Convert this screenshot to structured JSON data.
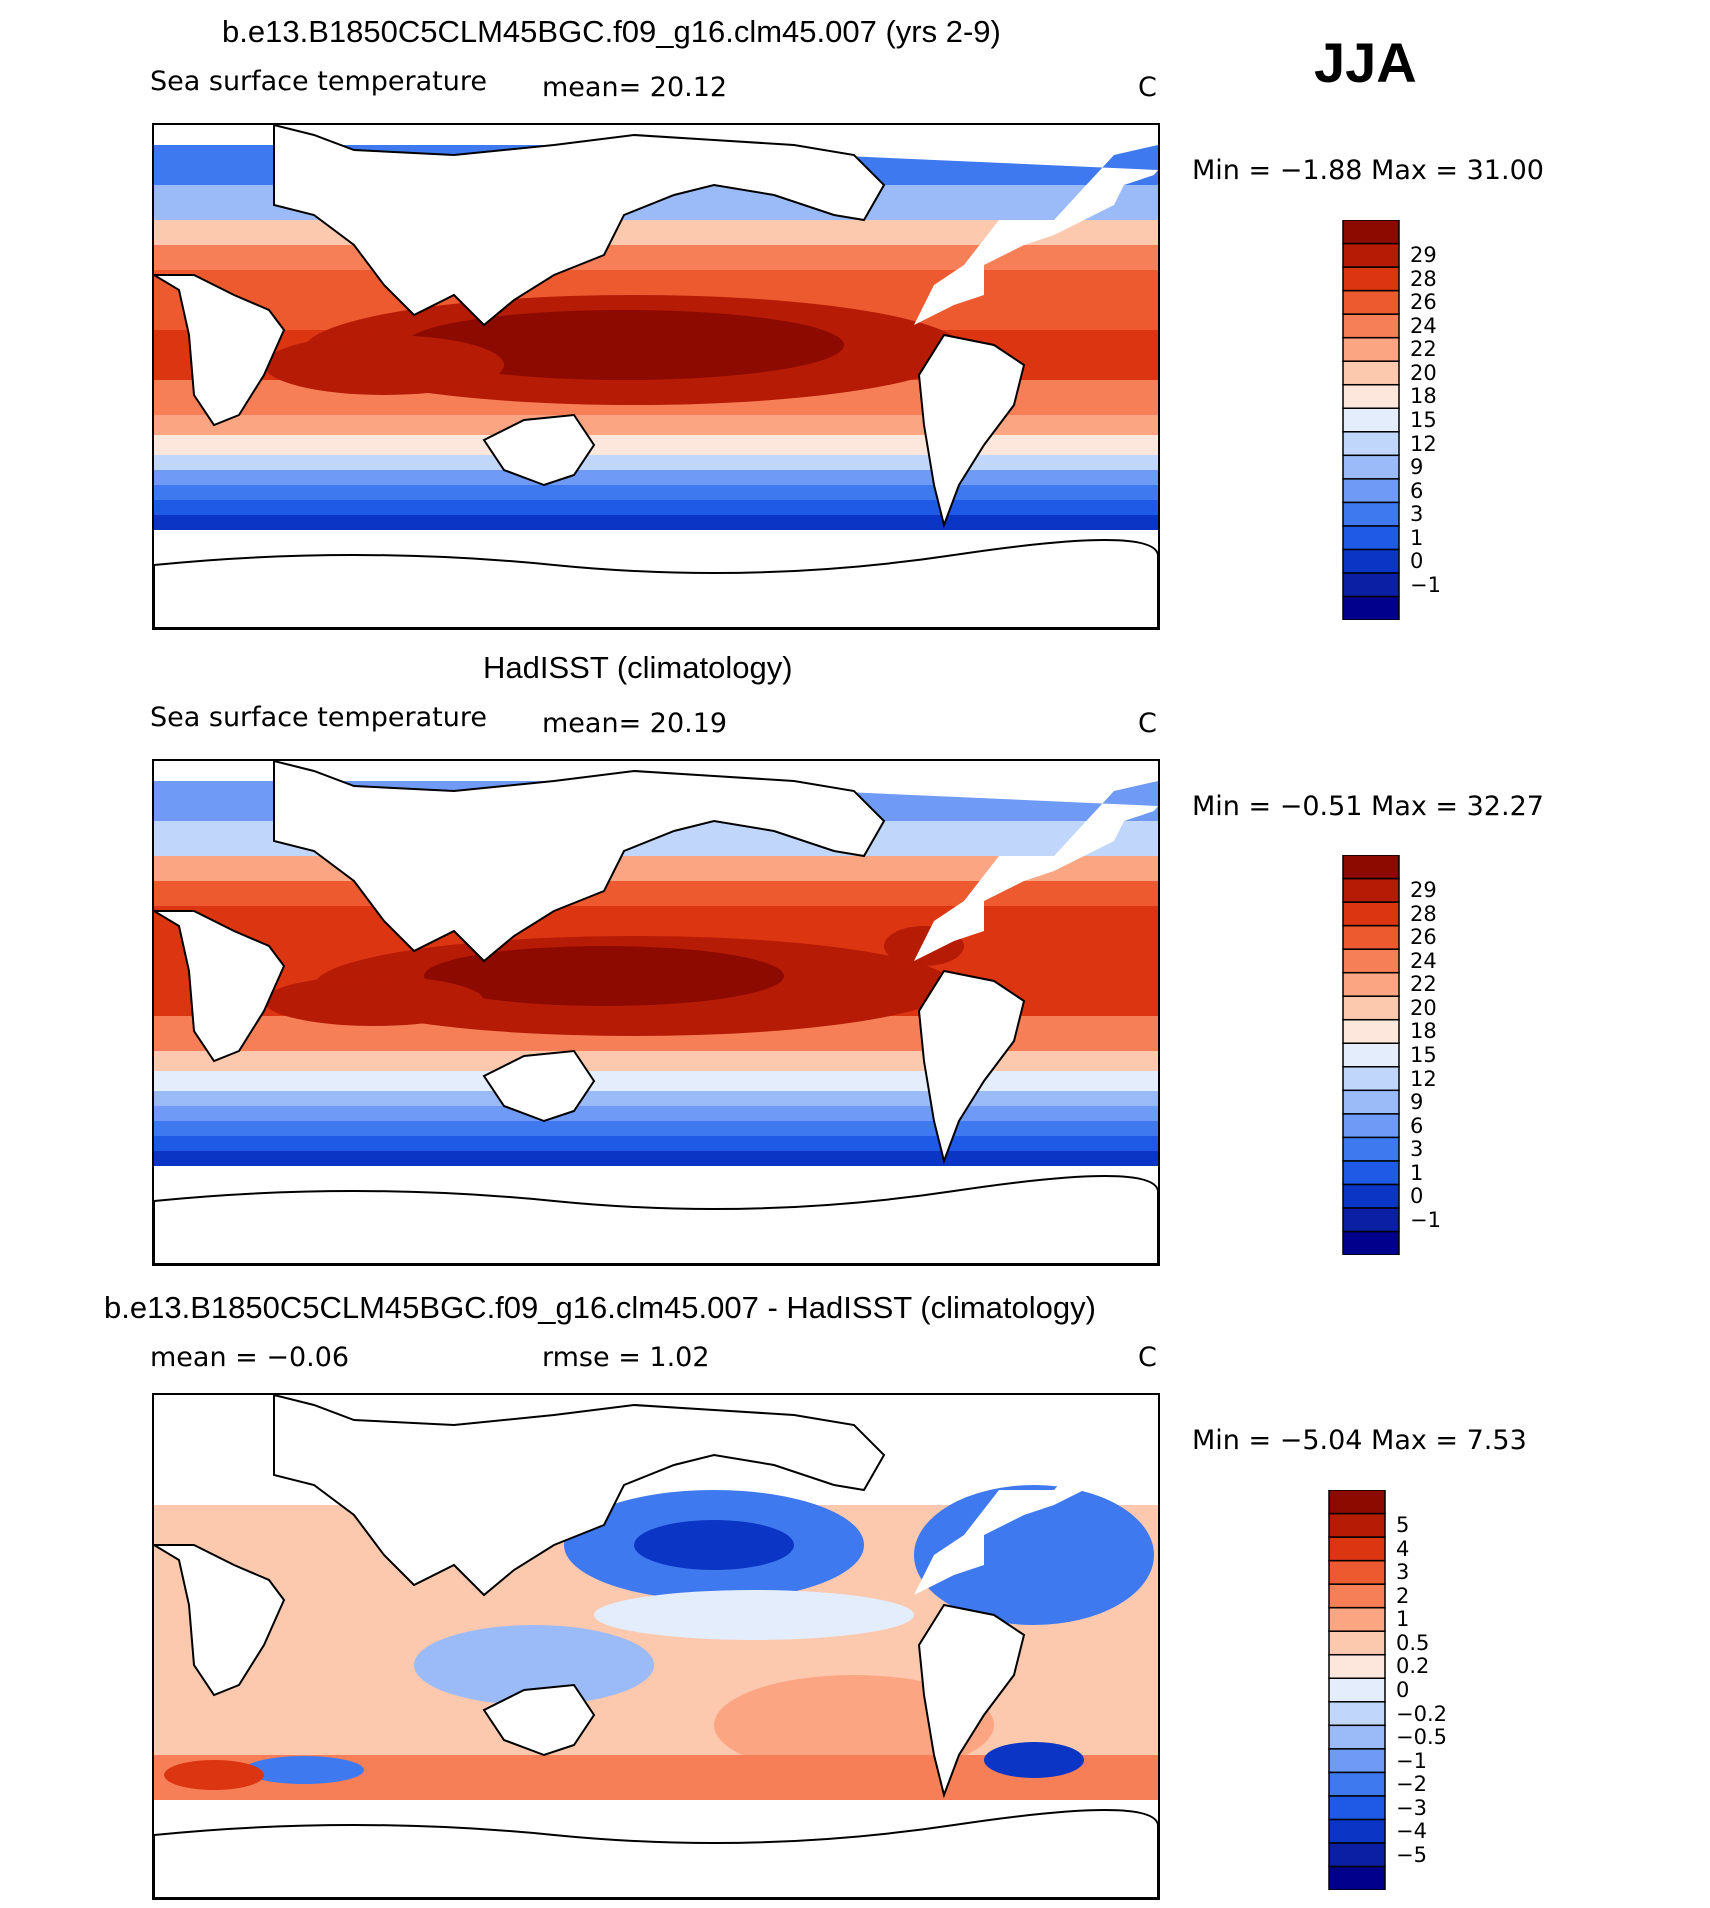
{
  "season": "JJA",
  "panels": [
    {
      "title": "b.e13.B1850C5CLM45BGC.f09_g16.clm45.007 (yrs 2-9)",
      "variable": "Sea surface temperature",
      "stat1": "mean=   20.12",
      "stat2": "",
      "units": "C",
      "minmax": "Min =   −1.88  Max =    31.00",
      "colorbar": {
        "colors": [
          "#00008c",
          "#0a1fa3",
          "#0b35c4",
          "#1e5ae6",
          "#3f79f0",
          "#6f9bf6",
          "#9bbaf8",
          "#c1d6fb",
          "#e3edfb",
          "#fde7dc",
          "#fcc8ae",
          "#fba582",
          "#f77f57",
          "#ee5a30",
          "#dc3512",
          "#b61b06",
          "#8c0a00"
        ],
        "labels": [
          "29",
          "28",
          "26",
          "24",
          "22",
          "20",
          "18",
          "15",
          "12",
          "9",
          "6",
          "3",
          "1",
          "0",
          "−1"
        ]
      }
    },
    {
      "title": "HadISST (climatology)",
      "variable": "Sea surface temperature",
      "stat1": "mean=   20.19",
      "stat2": "",
      "units": "C",
      "minmax": "Min =   −0.51  Max =    32.27",
      "colorbar": {
        "colors": [
          "#00008c",
          "#0a1fa3",
          "#0b35c4",
          "#1e5ae6",
          "#3f79f0",
          "#6f9bf6",
          "#9bbaf8",
          "#c1d6fb",
          "#e3edfb",
          "#fde7dc",
          "#fcc8ae",
          "#fba582",
          "#f77f57",
          "#ee5a30",
          "#dc3512",
          "#b61b06",
          "#8c0a00"
        ],
        "labels": [
          "29",
          "28",
          "26",
          "24",
          "22",
          "20",
          "18",
          "15",
          "12",
          "9",
          "6",
          "3",
          "1",
          "0",
          "−1"
        ]
      }
    },
    {
      "title": "b.e13.B1850C5CLM45BGC.f09_g16.clm45.007 - HadISST (climatology)",
      "variable": "",
      "stat1": "mean =   −0.06",
      "stat2": "rmse =     1.02",
      "units": "C",
      "minmax": "Min =   −5.04  Max =     7.53",
      "colorbar": {
        "colors": [
          "#00008c",
          "#0a1fa3",
          "#0b35c4",
          "#1e5ae6",
          "#3f79f0",
          "#6f9bf6",
          "#9bbaf8",
          "#c1d6fb",
          "#e3edfb",
          "#fde7dc",
          "#fcc8ae",
          "#fba582",
          "#f77f57",
          "#ee5a30",
          "#dc3512",
          "#b61b06",
          "#8c0a00"
        ],
        "labels": [
          "5",
          "4",
          "3",
          "2",
          "1",
          "0.5",
          "0.2",
          "0",
          "−0.2",
          "−0.5",
          "−1",
          "−2",
          "−3",
          "−4",
          "−5"
        ]
      }
    }
  ]
}
